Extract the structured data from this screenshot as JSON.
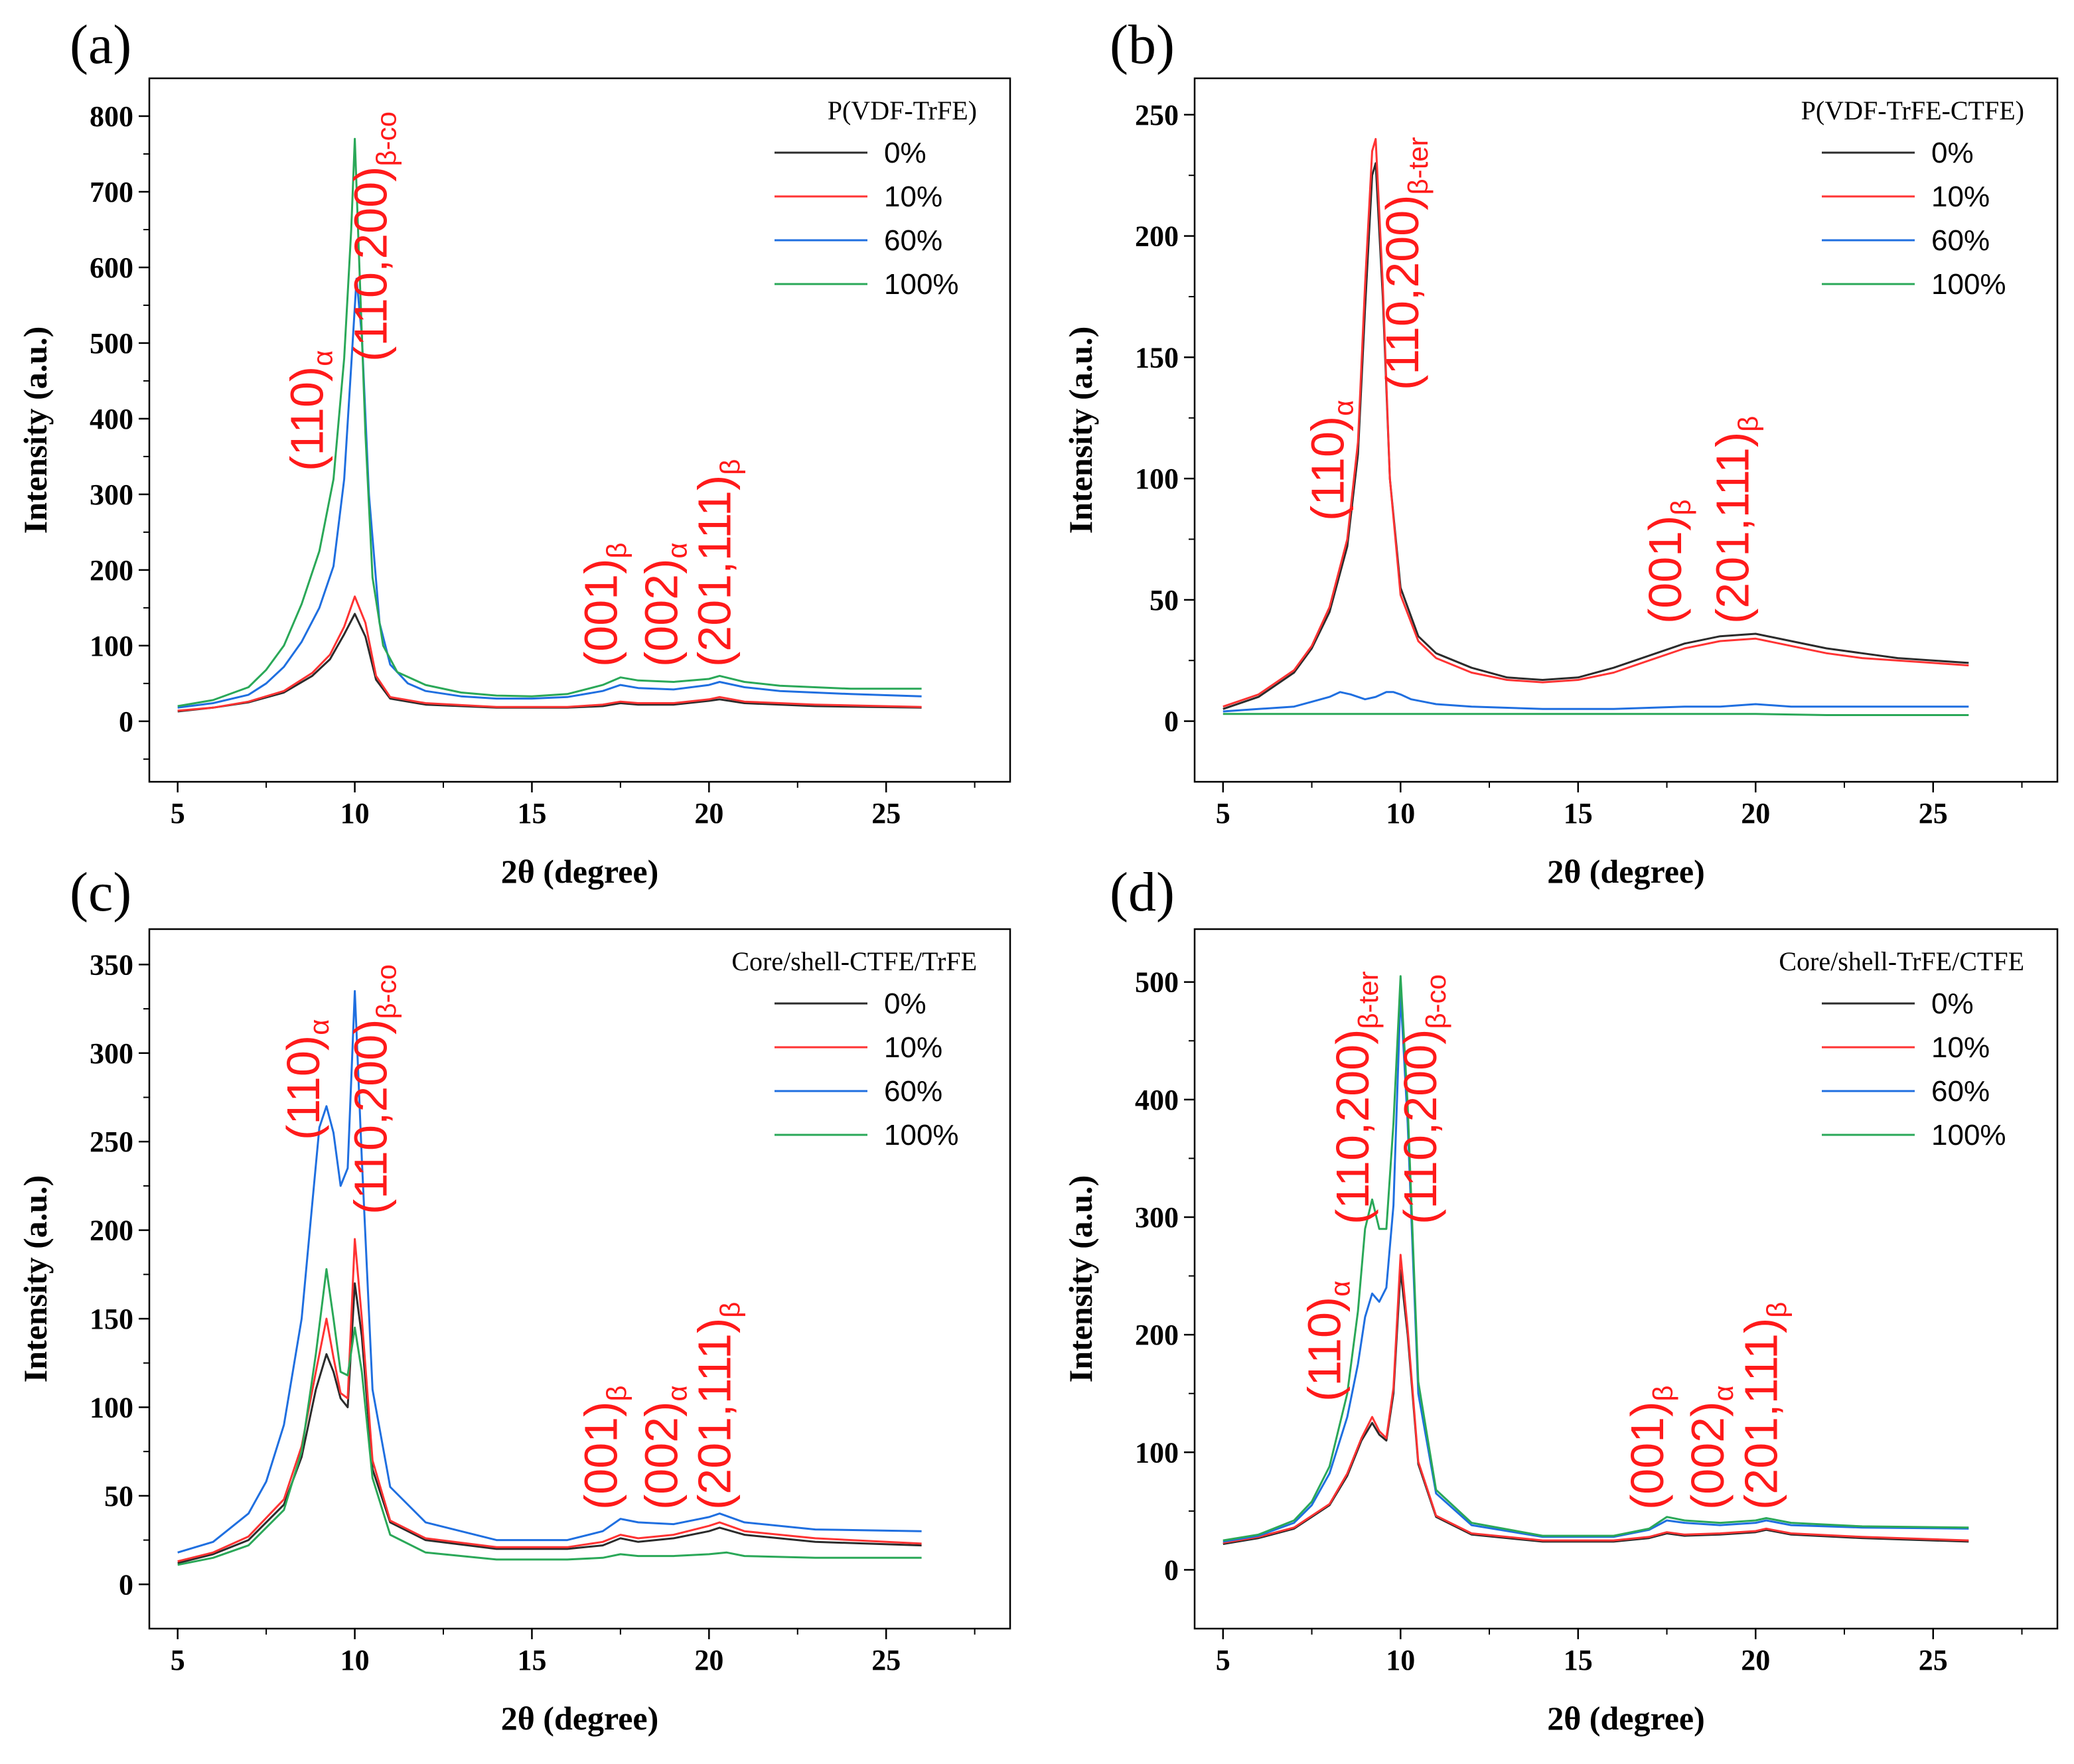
{
  "chart_data": [
    {
      "type": "line",
      "panel_label": "(a)",
      "xlabel": "2θ (degree)",
      "ylabel": "Intensity (a.u.)",
      "xlim": [
        4.2,
        28.5
      ],
      "ylim": [
        -80,
        850
      ],
      "xticks": [
        5,
        10,
        15,
        20,
        25
      ],
      "yticks": [
        0,
        100,
        200,
        300,
        400,
        500,
        600,
        700,
        800
      ],
      "legend_title": "P(VDF-TrFE)",
      "legend_position": "top-right",
      "series": [
        {
          "name": "0%",
          "color": "#2b2b2b",
          "x": [
            5,
            6,
            7,
            8,
            8.8,
            9.3,
            9.7,
            10,
            10.3,
            10.6,
            11,
            12,
            14,
            16,
            17,
            17.5,
            18,
            19,
            20,
            20.3,
            21,
            23,
            26
          ],
          "y": [
            13,
            18,
            25,
            38,
            60,
            82,
            115,
            142,
            112,
            55,
            30,
            22,
            18,
            18,
            20,
            24,
            22,
            22,
            27,
            29,
            24,
            20,
            18
          ]
        },
        {
          "name": "10%",
          "color": "#ff3333",
          "x": [
            5,
            6,
            7,
            8,
            8.8,
            9.3,
            9.7,
            10,
            10.3,
            10.6,
            11,
            12,
            14,
            16,
            17,
            17.5,
            18,
            19,
            20,
            20.3,
            21,
            23,
            26
          ],
          "y": [
            14,
            18,
            26,
            40,
            64,
            88,
            125,
            165,
            130,
            60,
            32,
            24,
            19,
            19,
            22,
            26,
            24,
            24,
            29,
            32,
            26,
            22,
            19
          ]
        },
        {
          "name": "60%",
          "color": "#1f6fe0",
          "x": [
            5,
            6,
            7,
            7.5,
            8,
            8.5,
            9,
            9.4,
            9.7,
            9.9,
            10.05,
            10.2,
            10.4,
            10.7,
            11,
            11.5,
            12,
            13,
            14,
            15,
            16,
            17,
            17.5,
            18,
            19,
            20,
            20.3,
            21,
            22,
            24,
            26
          ],
          "y": [
            18,
            24,
            35,
            50,
            72,
            105,
            150,
            205,
            320,
            470,
            585,
            510,
            300,
            130,
            75,
            50,
            40,
            33,
            30,
            30,
            32,
            40,
            48,
            44,
            42,
            48,
            52,
            45,
            40,
            36,
            33
          ]
        },
        {
          "name": "100%",
          "color": "#2aa858",
          "x": [
            5,
            6,
            7,
            7.5,
            8,
            8.5,
            9,
            9.4,
            9.7,
            9.9,
            10,
            10.1,
            10.3,
            10.5,
            10.8,
            11.2,
            12,
            13,
            14,
            15,
            16,
            17,
            17.5,
            18,
            19,
            20,
            20.3,
            21,
            22,
            24,
            26
          ],
          "y": [
            20,
            28,
            45,
            68,
            100,
            155,
            225,
            320,
            480,
            650,
            770,
            640,
            380,
            190,
            100,
            65,
            48,
            38,
            34,
            33,
            36,
            48,
            58,
            54,
            52,
            56,
            60,
            52,
            47,
            43,
            43
          ]
        }
      ],
      "annotations": [
        {
          "text": "(110)",
          "sub": "α"
        },
        {
          "text": "(110,200)",
          "sub": "β-co"
        },
        {
          "text": "(001)",
          "sub": "β"
        },
        {
          "text": "(002)",
          "sub": "α"
        },
        {
          "text": "(201,111)",
          "sub": "β"
        }
      ]
    },
    {
      "type": "line",
      "panel_label": "(b)",
      "xlabel": "2θ (degree)",
      "ylabel": "Intensity (a.u.)",
      "xlim": [
        4.2,
        28.5
      ],
      "ylim": [
        -25,
        265
      ],
      "xticks": [
        5,
        10,
        15,
        20,
        25
      ],
      "yticks": [
        0,
        50,
        100,
        150,
        200,
        250
      ],
      "legend_title": "P(VDF-TrFE-CTFE)",
      "legend_position": "top-right",
      "series": [
        {
          "name": "0%",
          "color": "#2b2b2b",
          "x": [
            5,
            6,
            7,
            7.5,
            8,
            8.5,
            8.8,
            9,
            9.2,
            9.3,
            9.5,
            9.7,
            10,
            10.5,
            11,
            12,
            13,
            14,
            15,
            16,
            17,
            18,
            19,
            20,
            21,
            22,
            23,
            24,
            26
          ],
          "y": [
            5,
            10,
            20,
            30,
            45,
            72,
            110,
            170,
            225,
            230,
            175,
            100,
            55,
            35,
            28,
            22,
            18,
            17,
            18,
            22,
            27,
            32,
            35,
            36,
            33,
            30,
            28,
            26,
            24
          ]
        },
        {
          "name": "10%",
          "color": "#ff3333",
          "x": [
            5,
            6,
            7,
            7.5,
            8,
            8.5,
            8.8,
            9,
            9.2,
            9.3,
            9.5,
            9.7,
            10,
            10.5,
            11,
            12,
            13,
            14,
            15,
            16,
            17,
            18,
            19,
            20,
            21,
            22,
            23,
            24,
            26
          ],
          "y": [
            6,
            11,
            21,
            31,
            47,
            75,
            115,
            180,
            235,
            240,
            180,
            100,
            52,
            33,
            26,
            20,
            17,
            16,
            17,
            20,
            25,
            30,
            33,
            34,
            31,
            28,
            26,
            25,
            23
          ]
        },
        {
          "name": "60%",
          "color": "#1f6fe0",
          "x": [
            5,
            6,
            7,
            7.5,
            8,
            8.3,
            8.6,
            9,
            9.3,
            9.6,
            9.8,
            10,
            10.3,
            11,
            12,
            14,
            16,
            18,
            19,
            20,
            21,
            23,
            26
          ],
          "y": [
            4,
            5,
            6,
            8,
            10,
            12,
            11,
            9,
            10,
            12,
            12,
            11,
            9,
            7,
            6,
            5,
            5,
            6,
            6,
            7,
            6,
            6,
            6
          ]
        },
        {
          "name": "100%",
          "color": "#2aa858",
          "x": [
            5,
            7,
            9,
            10,
            12,
            15,
            18,
            20,
            22,
            24,
            26
          ],
          "y": [
            3,
            3,
            3,
            3,
            3,
            3,
            3,
            3,
            2.5,
            2.5,
            2.5
          ]
        }
      ],
      "annotations": [
        {
          "text": "(110)",
          "sub": "α"
        },
        {
          "text": "(110,200)",
          "sub": "β-ter"
        },
        {
          "text": "(001)",
          "sub": "β"
        },
        {
          "text": "(201,111)",
          "sub": "β"
        }
      ]
    },
    {
      "type": "line",
      "panel_label": "(c)",
      "xlabel": "2θ (degree)",
      "ylabel": "Intensity (a.u.)",
      "xlim": [
        4.2,
        28.5
      ],
      "ylim": [
        -25,
        370
      ],
      "xticks": [
        5,
        10,
        15,
        20,
        25
      ],
      "yticks": [
        0,
        50,
        100,
        150,
        200,
        250,
        300,
        350
      ],
      "legend_title": "Core/shell-CTFE/TrFE",
      "legend_position": "top-right",
      "series": [
        {
          "name": "0%",
          "color": "#2b2b2b",
          "x": [
            5,
            6,
            7,
            8,
            8.5,
            8.9,
            9.2,
            9.4,
            9.6,
            9.8,
            10,
            10.2,
            10.5,
            11,
            12,
            14,
            16,
            17,
            17.5,
            18,
            19,
            20,
            20.3,
            21,
            23,
            26
          ],
          "y": [
            12,
            17,
            25,
            45,
            72,
            110,
            130,
            120,
            105,
            100,
            170,
            140,
            65,
            35,
            25,
            20,
            20,
            22,
            26,
            24,
            26,
            30,
            32,
            28,
            24,
            22
          ]
        },
        {
          "name": "10%",
          "color": "#ff3333",
          "x": [
            5,
            6,
            7,
            8,
            8.5,
            8.9,
            9.2,
            9.4,
            9.6,
            9.8,
            10,
            10.2,
            10.5,
            11,
            12,
            14,
            16,
            17,
            17.5,
            18,
            19,
            20,
            20.3,
            21,
            23,
            26
          ],
          "y": [
            13,
            18,
            27,
            48,
            78,
            120,
            150,
            128,
            108,
            105,
            195,
            150,
            70,
            36,
            26,
            21,
            21,
            24,
            28,
            26,
            28,
            33,
            35,
            30,
            26,
            23
          ]
        },
        {
          "name": "60%",
          "color": "#1f6fe0",
          "x": [
            5,
            6,
            7,
            7.5,
            8,
            8.5,
            8.8,
            9,
            9.2,
            9.4,
            9.6,
            9.8,
            10,
            10.2,
            10.5,
            11,
            12,
            14,
            16,
            17,
            17.5,
            18,
            19,
            20,
            20.3,
            21,
            23,
            26
          ],
          "y": [
            18,
            24,
            40,
            58,
            90,
            150,
            215,
            258,
            270,
            255,
            225,
            235,
            335,
            240,
            110,
            55,
            35,
            25,
            25,
            30,
            37,
            35,
            34,
            38,
            40,
            35,
            31,
            30
          ]
        },
        {
          "name": "100%",
          "color": "#2aa858",
          "x": [
            5,
            6,
            7,
            8,
            8.5,
            8.9,
            9.2,
            9.4,
            9.6,
            9.8,
            10,
            10.2,
            10.5,
            11,
            12,
            14,
            16,
            17,
            17.5,
            18,
            19,
            20,
            20.5,
            21,
            23,
            26
          ],
          "y": [
            11,
            15,
            22,
            42,
            75,
            130,
            178,
            150,
            120,
            118,
            145,
            120,
            60,
            28,
            18,
            14,
            14,
            15,
            17,
            16,
            16,
            17,
            18,
            16,
            15,
            15
          ]
        }
      ],
      "annotations": [
        {
          "text": "(110)",
          "sub": "α"
        },
        {
          "text": "(110,200)",
          "sub": "β-co"
        },
        {
          "text": "(001)",
          "sub": "β"
        },
        {
          "text": "(002)",
          "sub": "α"
        },
        {
          "text": "(201,111)",
          "sub": "β"
        }
      ]
    },
    {
      "type": "line",
      "panel_label": "(d)",
      "xlabel": "2θ (degree)",
      "ylabel": "Intensity (a.u.)",
      "xlim": [
        4.2,
        28.5
      ],
      "ylim": [
        -50,
        545
      ],
      "xticks": [
        5,
        10,
        15,
        20,
        25
      ],
      "yticks": [
        0,
        100,
        200,
        300,
        400,
        500
      ],
      "legend_title": "Core/shell-TrFE/CTFE",
      "legend_position": "top-right",
      "series": [
        {
          "name": "0%",
          "color": "#2b2b2b",
          "x": [
            5,
            6,
            7,
            8,
            8.5,
            8.9,
            9.2,
            9.4,
            9.6,
            9.8,
            10,
            10.2,
            10.5,
            11,
            12,
            14,
            16,
            17,
            17.5,
            18,
            19,
            20,
            20.3,
            21,
            23,
            26
          ],
          "y": [
            22,
            27,
            35,
            55,
            80,
            110,
            125,
            115,
            110,
            150,
            255,
            200,
            90,
            45,
            30,
            24,
            24,
            27,
            31,
            29,
            30,
            32,
            34,
            30,
            27,
            24
          ]
        },
        {
          "name": "10%",
          "color": "#ff3333",
          "x": [
            5,
            6,
            7,
            8,
            8.5,
            8.9,
            9.2,
            9.4,
            9.6,
            9.8,
            10,
            10.2,
            10.5,
            11,
            12,
            14,
            16,
            17,
            17.5,
            18,
            19,
            20,
            20.3,
            21,
            23,
            26
          ],
          "y": [
            23,
            28,
            36,
            56,
            82,
            112,
            130,
            118,
            112,
            155,
            268,
            205,
            92,
            46,
            31,
            25,
            25,
            28,
            32,
            30,
            31,
            33,
            35,
            31,
            28,
            25
          ]
        },
        {
          "name": "60%",
          "color": "#1f6fe0",
          "x": [
            5,
            6,
            7,
            7.5,
            8,
            8.5,
            8.8,
            9,
            9.2,
            9.4,
            9.6,
            9.8,
            10,
            10.2,
            10.5,
            11,
            12,
            14,
            16,
            17,
            17.5,
            18,
            19,
            20,
            20.3,
            21,
            23,
            26
          ],
          "y": [
            24,
            29,
            40,
            55,
            82,
            130,
            175,
            215,
            235,
            228,
            240,
            310,
            490,
            380,
            150,
            65,
            38,
            28,
            28,
            34,
            42,
            40,
            38,
            40,
            42,
            38,
            36,
            35
          ]
        },
        {
          "name": "100%",
          "color": "#2aa858",
          "x": [
            5,
            6,
            7,
            7.5,
            8,
            8.5,
            8.8,
            9,
            9.2,
            9.4,
            9.6,
            9.8,
            10,
            10.2,
            10.5,
            11,
            12,
            14,
            16,
            17,
            17.5,
            18,
            19,
            20,
            20.3,
            21,
            23,
            26
          ],
          "y": [
            25,
            30,
            42,
            58,
            88,
            150,
            220,
            290,
            315,
            290,
            290,
            380,
            505,
            395,
            160,
            68,
            40,
            29,
            29,
            35,
            45,
            42,
            40,
            42,
            44,
            40,
            37,
            36
          ]
        }
      ],
      "annotations": [
        {
          "text": "(110)",
          "sub": "α"
        },
        {
          "text": "(110,200)",
          "sub": "β-ter"
        },
        {
          "text": "(110,200)",
          "sub": "β-co"
        },
        {
          "text": "(001)",
          "sub": "β"
        },
        {
          "text": "(002)",
          "sub": "α"
        },
        {
          "text": "(201,111)",
          "sub": "β"
        }
      ]
    }
  ]
}
